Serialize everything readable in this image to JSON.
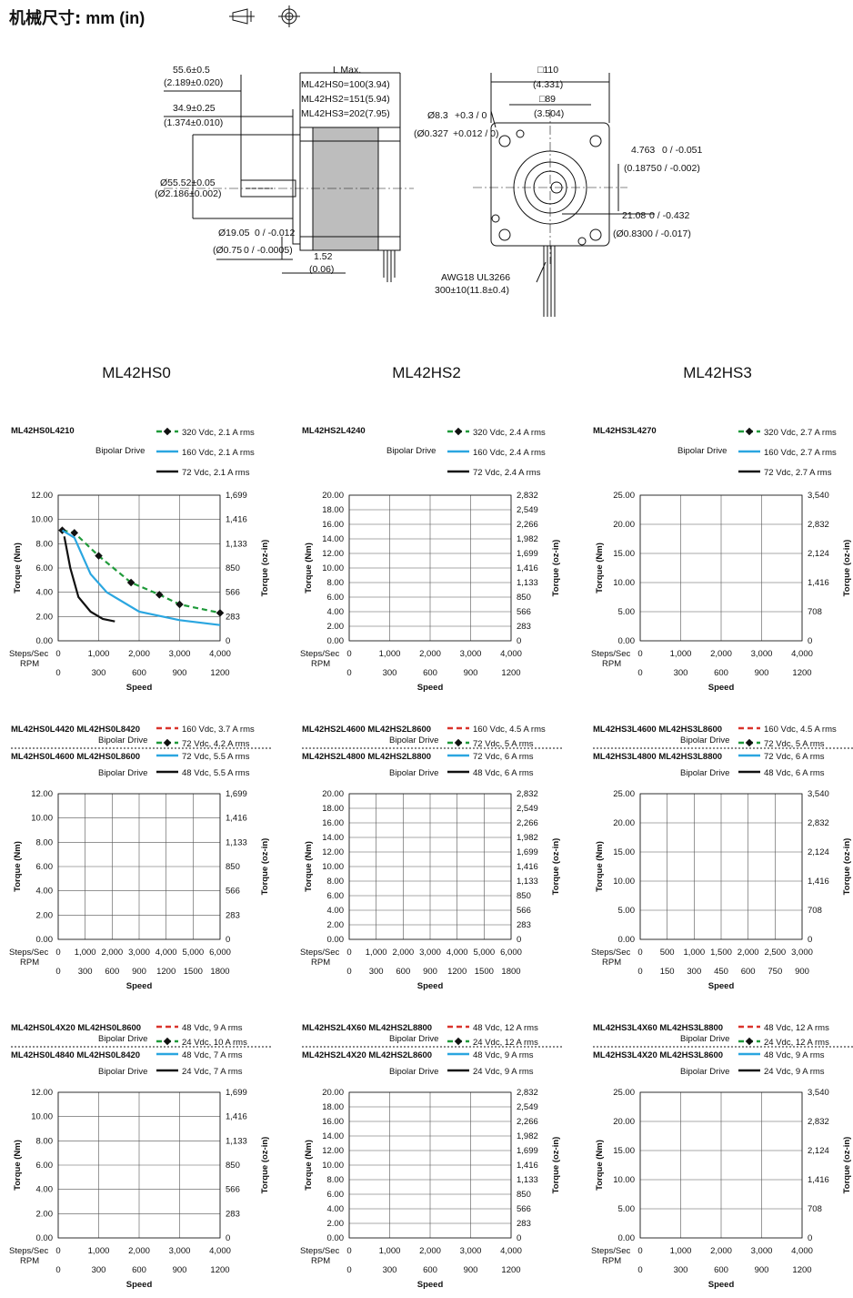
{
  "page": {
    "title_zh": "机械尺寸:",
    "title_en": "mm (in)",
    "symbols": [
      "projection-symbol-icon",
      "crosshair-symbol-icon"
    ]
  },
  "mechanical": {
    "dim_len_total": "55.6±0.5",
    "dim_len_total_in": "(2.189±0.020)",
    "dim_pilot_len": "34.9±0.25",
    "dim_pilot_len_in": "(1.374±0.010)",
    "dim_pilot_dia": "Ø55.52±0.05",
    "dim_pilot_dia_in": "(Ø2.186±0.002)",
    "dim_shaft_dia": "Ø19.05",
    "dim_shaft_dia_tol": "0 / -0.012",
    "dim_shaft_dia_in": "(Ø0.75",
    "dim_shaft_dia_in_tol": "0 / -0.0005)",
    "dim_flange": "1.52",
    "dim_flange_in": "(0.06)",
    "l_max_title": "L Max.",
    "l_max_rows": [
      "ML42HS0=100(3.94)",
      "ML42HS2=151(5.94)",
      "ML42HS3=202(7.95)"
    ],
    "dim_square_outer": "□110",
    "dim_square_outer_in": "(4.331)",
    "dim_square_inner": "□89",
    "dim_square_inner_in": "(3.504)",
    "dim_hole": "Ø8.3",
    "dim_hole_tol": "+0.3 / 0",
    "dim_hole_in": "(Ø0.327",
    "dim_hole_in_tol": "+0.012 / 0)",
    "dim_key_width": "4.763",
    "dim_key_width_tol": "0 / -0.051",
    "dim_key_width_in": "(0.1875",
    "dim_key_width_in_tol": "0 / -0.002)",
    "dim_key_depth": "21.08",
    "dim_key_depth_tol": "0 / -0.432",
    "dim_key_depth_in": "(Ø0.830",
    "dim_key_depth_in_tol": "0 / -0.017)",
    "cable_spec": "AWG18 UL3266",
    "cable_len": "300±10(11.8±0.4)"
  },
  "series_headers": [
    "ML42HS0",
    "ML42HS2",
    "ML42HS3"
  ],
  "chart_common": {
    "y_label": "Torque (Nm)",
    "y2_label": "Torque (oz-in)",
    "x_label": "Speed",
    "steps_label": "Steps/Sec",
    "rpm_label": "RPM",
    "drive_label": "Bipolar Drive"
  },
  "chart_data": [
    {
      "type": "line",
      "title": "ML42HS0L4210",
      "secondary_title": "",
      "ylim": [
        0,
        12
      ],
      "yticks": [
        "12.00",
        "10.00",
        "8.00",
        "6.00",
        "4.00",
        "2.00",
        "0.00"
      ],
      "y2ticks": [
        "1,699",
        "1,416",
        "1,133",
        "850",
        "566",
        "283",
        "0"
      ],
      "xlim": [
        0,
        4000
      ],
      "xticks": [
        "0",
        "1,000",
        "2,000",
        "3,000",
        "4,000"
      ],
      "rpm_ticks": [
        "0",
        "300",
        "600",
        "900",
        "1200"
      ],
      "series": [
        {
          "name": "320 Vdc, 2.1 A rms",
          "style": "green-dashed-markers",
          "x": [
            100,
            400,
            1000,
            1800,
            2500,
            3000,
            4000
          ],
          "y": [
            9.1,
            8.9,
            7.0,
            4.8,
            3.8,
            3.0,
            2.3
          ]
        },
        {
          "name": "160 Vdc, 2.1 A rms",
          "style": "blue",
          "x": [
            100,
            400,
            800,
            1200,
            2000,
            3000,
            4000
          ],
          "y": [
            9.1,
            8.5,
            5.5,
            4.0,
            2.4,
            1.7,
            1.3
          ]
        },
        {
          "name": "72 Vdc, 2.1 A rms",
          "style": "black",
          "x": [
            150,
            300,
            500,
            800,
            1100,
            1400
          ],
          "y": [
            8.6,
            6.0,
            3.6,
            2.4,
            1.8,
            1.6
          ]
        }
      ]
    },
    {
      "type": "line",
      "title": "ML42HS2L4240",
      "secondary_title": "",
      "ylim": [
        0,
        20
      ],
      "yticks": [
        "20.00",
        "18.00",
        "16.00",
        "14.00",
        "12.00",
        "10.00",
        "8.00",
        "6.00",
        "4.00",
        "2.00",
        "0.00"
      ],
      "y2ticks": [
        "2,832",
        "2,549",
        "2,266",
        "1,982",
        "1,699",
        "1,416",
        "1,133",
        "850",
        "566",
        "283",
        "0"
      ],
      "xlim": [
        0,
        4000
      ],
      "xticks": [
        "0",
        "1,000",
        "2,000",
        "3,000",
        "4,000"
      ],
      "rpm_ticks": [
        "0",
        "300",
        "600",
        "900",
        "1200"
      ],
      "series": [
        {
          "name": "320 Vdc, 2.4 A rms",
          "style": "green-dashed-markers",
          "x": [],
          "y": []
        },
        {
          "name": "160 Vdc, 2.4 A rms",
          "style": "blue",
          "x": [],
          "y": []
        },
        {
          "name": "72 Vdc, 2.4 A rms",
          "style": "black",
          "x": [],
          "y": []
        }
      ]
    },
    {
      "type": "line",
      "title": "ML42HS3L4270",
      "secondary_title": "",
      "ylim": [
        0,
        25
      ],
      "yticks": [
        "25.00",
        "20.00",
        "15.00",
        "10.00",
        "5.00",
        "0.00"
      ],
      "y2ticks": [
        "3,540",
        "2,832",
        "2,124",
        "1,416",
        "708",
        "0"
      ],
      "xlim": [
        0,
        4000
      ],
      "xticks": [
        "0",
        "1,000",
        "2,000",
        "3,000",
        "4,000"
      ],
      "rpm_ticks": [
        "0",
        "300",
        "600",
        "900",
        "1200"
      ],
      "series": [
        {
          "name": "320 Vdc, 2.7 A rms",
          "style": "green-dashed-markers",
          "x": [],
          "y": []
        },
        {
          "name": "160 Vdc, 2.7 A rms",
          "style": "blue",
          "x": [],
          "y": []
        },
        {
          "name": "72 Vdc, 2.7 A rms",
          "style": "black",
          "x": [],
          "y": []
        }
      ]
    },
    {
      "type": "line",
      "title": "ML42HS0L4420  ML42HS0L8420",
      "secondary_title": "ML42HS0L4600  ML42HS0L8600",
      "ylim": [
        0,
        12
      ],
      "yticks": [
        "12.00",
        "10.00",
        "8.00",
        "6.00",
        "4.00",
        "2.00",
        "0.00"
      ],
      "y2ticks": [
        "1,699",
        "1,416",
        "1,133",
        "850",
        "566",
        "283",
        "0"
      ],
      "xlim": [
        0,
        6000
      ],
      "xticks": [
        "0",
        "1,000",
        "2,000",
        "3,000",
        "4,000",
        "5,000",
        "6,000"
      ],
      "rpm_ticks": [
        "0",
        "300",
        "600",
        "900",
        "1200",
        "1500",
        "1800"
      ],
      "series": [
        {
          "name": "160 Vdc, 3.7 A rms",
          "style": "red-dashed",
          "x": [],
          "y": []
        },
        {
          "name": "72 Vdc, 4.2 A rms",
          "style": "green-dashed-markers",
          "x": [],
          "y": []
        },
        {
          "name": "72 Vdc, 5.5 A rms",
          "style": "blue",
          "x": [],
          "y": []
        },
        {
          "name": "48 Vdc, 5.5 A rms",
          "style": "black",
          "x": [],
          "y": []
        }
      ]
    },
    {
      "type": "line",
      "title": "ML42HS2L4600  ML42HS2L8600",
      "secondary_title": "ML42HS2L4800  ML42HS2L8800",
      "ylim": [
        0,
        20
      ],
      "yticks": [
        "20.00",
        "18.00",
        "16.00",
        "14.00",
        "12.00",
        "10.00",
        "8.00",
        "6.00",
        "4.00",
        "2.00",
        "0.00"
      ],
      "y2ticks": [
        "2,832",
        "2,549",
        "2,266",
        "1,982",
        "1,699",
        "1,416",
        "1,133",
        "850",
        "566",
        "283",
        "0"
      ],
      "xlim": [
        0,
        6000
      ],
      "xticks": [
        "0",
        "1,000",
        "2,000",
        "3,000",
        "4,000",
        "5,000",
        "6,000"
      ],
      "rpm_ticks": [
        "0",
        "300",
        "600",
        "900",
        "1200",
        "1500",
        "1800"
      ],
      "series": [
        {
          "name": "160 Vdc, 4.5 A rms",
          "style": "red-dashed",
          "x": [],
          "y": []
        },
        {
          "name": "72 Vdc, 5 A rms",
          "style": "green-dashed-markers",
          "x": [],
          "y": []
        },
        {
          "name": "72 Vdc, 6 A rms",
          "style": "blue",
          "x": [],
          "y": []
        },
        {
          "name": "48 Vdc, 6 A rms",
          "style": "black",
          "x": [],
          "y": []
        }
      ]
    },
    {
      "type": "line",
      "title": "ML42HS3L4600  ML42HS3L8600",
      "secondary_title": "ML42HS3L4800  ML42HS3L8800",
      "ylim": [
        0,
        25
      ],
      "yticks": [
        "25.00",
        "20.00",
        "15.00",
        "10.00",
        "5.00",
        "0.00"
      ],
      "y2ticks": [
        "3,540",
        "2,832",
        "2,124",
        "1,416",
        "708",
        "0"
      ],
      "xlim": [
        0,
        3000
      ],
      "xticks": [
        "0",
        "500",
        "1,000",
        "1,500",
        "2,000",
        "2,500",
        "3,000"
      ],
      "rpm_ticks": [
        "0",
        "150",
        "300",
        "450",
        "600",
        "750",
        "900"
      ],
      "series": [
        {
          "name": "160 Vdc, 4.5 A rms",
          "style": "red-dashed",
          "x": [],
          "y": []
        },
        {
          "name": "72 Vdc, 5 A rms",
          "style": "green-dashed-markers",
          "x": [],
          "y": []
        },
        {
          "name": "72 Vdc, 6 A rms",
          "style": "blue",
          "x": [],
          "y": []
        },
        {
          "name": "48 Vdc, 6 A rms",
          "style": "black",
          "x": [],
          "y": []
        }
      ]
    },
    {
      "type": "line",
      "title": "ML42HS0L4X20  ML42HS0L8600",
      "secondary_title": "ML42HS0L4840  ML42HS0L8420",
      "ylim": [
        0,
        12
      ],
      "yticks": [
        "12.00",
        "10.00",
        "8.00",
        "6.00",
        "4.00",
        "2.00",
        "0.00"
      ],
      "y2ticks": [
        "1,699",
        "1,416",
        "1,133",
        "850",
        "566",
        "283",
        "0"
      ],
      "xlim": [
        0,
        4000
      ],
      "xticks": [
        "0",
        "1,000",
        "2,000",
        "3,000",
        "4,000"
      ],
      "rpm_ticks": [
        "0",
        "300",
        "600",
        "900",
        "1200"
      ],
      "series": [
        {
          "name": "48 Vdc, 9 A rms",
          "style": "red-dashed",
          "x": [],
          "y": []
        },
        {
          "name": "24 Vdc, 10 A rms",
          "style": "green-dashed-markers",
          "x": [],
          "y": []
        },
        {
          "name": "48 Vdc, 7 A rms",
          "style": "blue",
          "x": [],
          "y": []
        },
        {
          "name": "24 Vdc, 7 A rms",
          "style": "black",
          "x": [],
          "y": []
        }
      ]
    },
    {
      "type": "line",
      "title": "ML42HS2L4X60  ML42HS2L8800",
      "secondary_title": "ML42HS2L4X20  ML42HS2L8600",
      "ylim": [
        0,
        20
      ],
      "yticks": [
        "20.00",
        "18.00",
        "16.00",
        "14.00",
        "12.00",
        "10.00",
        "8.00",
        "6.00",
        "4.00",
        "2.00",
        "0.00"
      ],
      "y2ticks": [
        "2,832",
        "2,549",
        "2,266",
        "1,982",
        "1,699",
        "1,416",
        "1,133",
        "850",
        "566",
        "283",
        "0"
      ],
      "xlim": [
        0,
        4000
      ],
      "xticks": [
        "0",
        "1,000",
        "2,000",
        "3,000",
        "4,000"
      ],
      "rpm_ticks": [
        "0",
        "300",
        "600",
        "900",
        "1200"
      ],
      "series": [
        {
          "name": "48 Vdc, 12 A rms",
          "style": "red-dashed",
          "x": [],
          "y": []
        },
        {
          "name": "24 Vdc, 12 A rms",
          "style": "green-dashed-markers",
          "x": [],
          "y": []
        },
        {
          "name": "48 Vdc, 9 A rms",
          "style": "blue",
          "x": [],
          "y": []
        },
        {
          "name": "24 Vdc, 9 A rms",
          "style": "black",
          "x": [],
          "y": []
        }
      ]
    },
    {
      "type": "line",
      "title": "ML42HS3L4X60  ML42HS3L8800",
      "secondary_title": "ML42HS3L4X20  ML42HS3L8600",
      "ylim": [
        0,
        25
      ],
      "yticks": [
        "25.00",
        "20.00",
        "15.00",
        "10.00",
        "5.00",
        "0.00"
      ],
      "y2ticks": [
        "3,540",
        "2,832",
        "2,124",
        "1,416",
        "708",
        "0"
      ],
      "xlim": [
        0,
        4000
      ],
      "xticks": [
        "0",
        "1,000",
        "2,000",
        "3,000",
        "4,000"
      ],
      "rpm_ticks": [
        "0",
        "300",
        "600",
        "900",
        "1200"
      ],
      "series": [
        {
          "name": "48 Vdc, 12 A rms",
          "style": "red-dashed",
          "x": [],
          "y": []
        },
        {
          "name": "24 Vdc, 12 A rms",
          "style": "green-dashed-markers",
          "x": [],
          "y": []
        },
        {
          "name": "48 Vdc, 9 A rms",
          "style": "blue",
          "x": [],
          "y": []
        },
        {
          "name": "24 Vdc, 9 A rms",
          "style": "black",
          "x": [],
          "y": []
        }
      ]
    }
  ],
  "colors": {
    "green": "#1f9a3a",
    "blue": "#2aa6e0",
    "black": "#111111",
    "red": "#d9332b",
    "grid": "#555555",
    "motor_body": "#bdbdbd"
  }
}
